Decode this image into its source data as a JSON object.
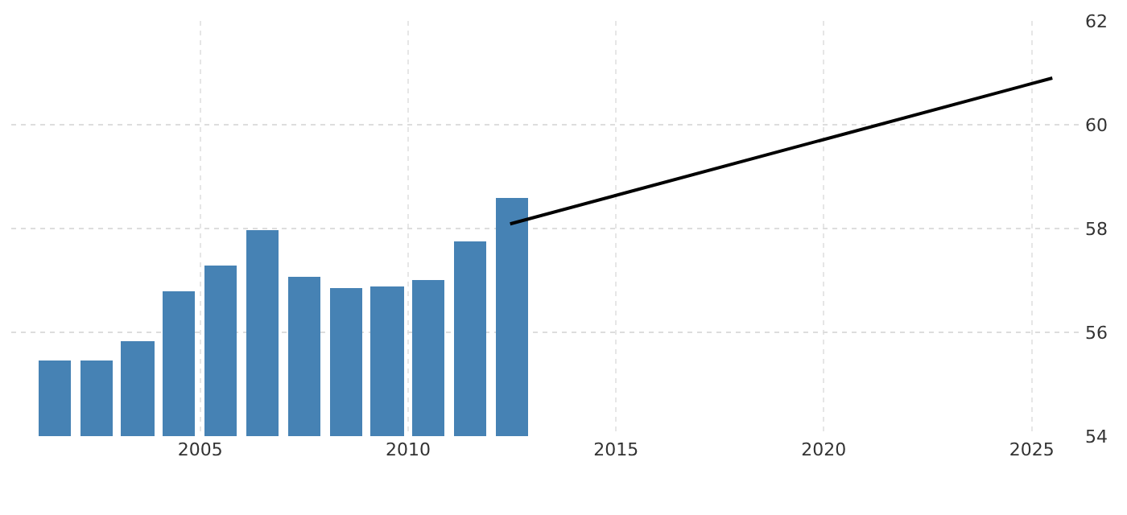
{
  "chart_data": {
    "type": "bar",
    "x": [
      "2001-07-01",
      "2002-07-01",
      "2003-07-01",
      "2004-07-01",
      "2005-07-01",
      "2006-07-01",
      "2007-07-01",
      "2008-07-01",
      "2009-07-01",
      "2010-07-01",
      "2011-07-01",
      "2012-07-01"
    ],
    "series": [
      {
        "color": "#4682b4",
        "values": [
          55.46,
          55.46,
          55.84,
          56.79,
          57.28,
          57.98,
          57.08,
          56.85,
          56.89,
          57.02,
          57.74,
          58.6
        ]
      },
      {
        "type": "line",
        "color": "#000000",
        "x": [
          "2012-06-15",
          "2025-07-01"
        ],
        "values": [
          58.09,
          60.9
        ]
      }
    ],
    "xlim": [
      "2000-06-15",
      "2026-04-01"
    ],
    "xticks": [
      {
        "value": "2005-01-01",
        "label": "2005"
      },
      {
        "value": "2010-01-01",
        "label": "2010"
      },
      {
        "value": "2015-01-01",
        "label": "2015"
      },
      {
        "value": "2020-01-01",
        "label": "2020"
      },
      {
        "value": "2025-01-01",
        "label": "2025"
      }
    ],
    "ylim": [
      54,
      62
    ],
    "yticks": [
      54,
      56,
      58,
      60,
      62
    ],
    "grid": true,
    "marker": "none",
    "line_style": "solid"
  }
}
